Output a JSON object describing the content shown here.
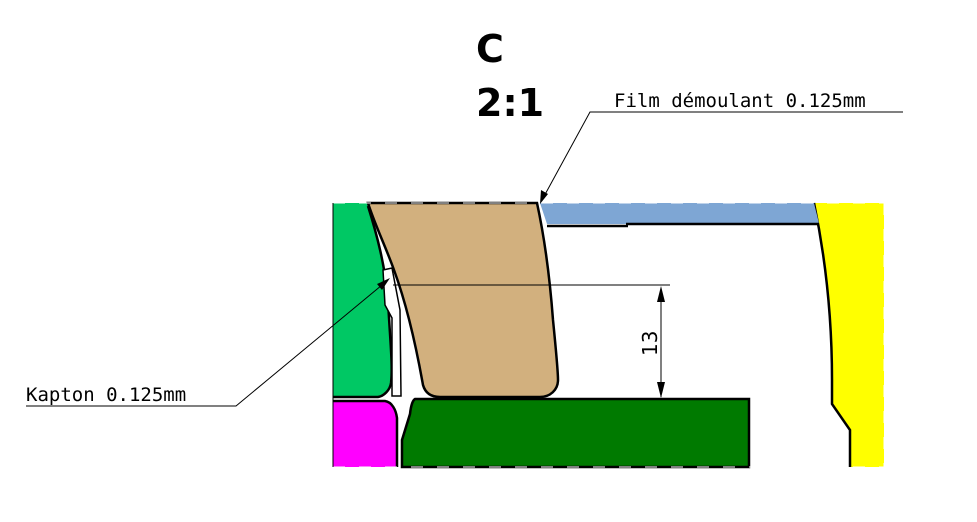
{
  "view": {
    "letter": "C",
    "scale": "2:1"
  },
  "annotations": {
    "film": "Film démoulant 0.125mm",
    "kapton": "Kapton 0.125mm"
  },
  "dimension": {
    "value": "13"
  },
  "colors": {
    "green_part": "#00c864",
    "magenta_part": "#ff00ff",
    "tan_part": "#d2b07e",
    "blue_part": "#7ea6d4",
    "yellow_part": "#ffff00",
    "dark_green_part": "#007a00"
  }
}
